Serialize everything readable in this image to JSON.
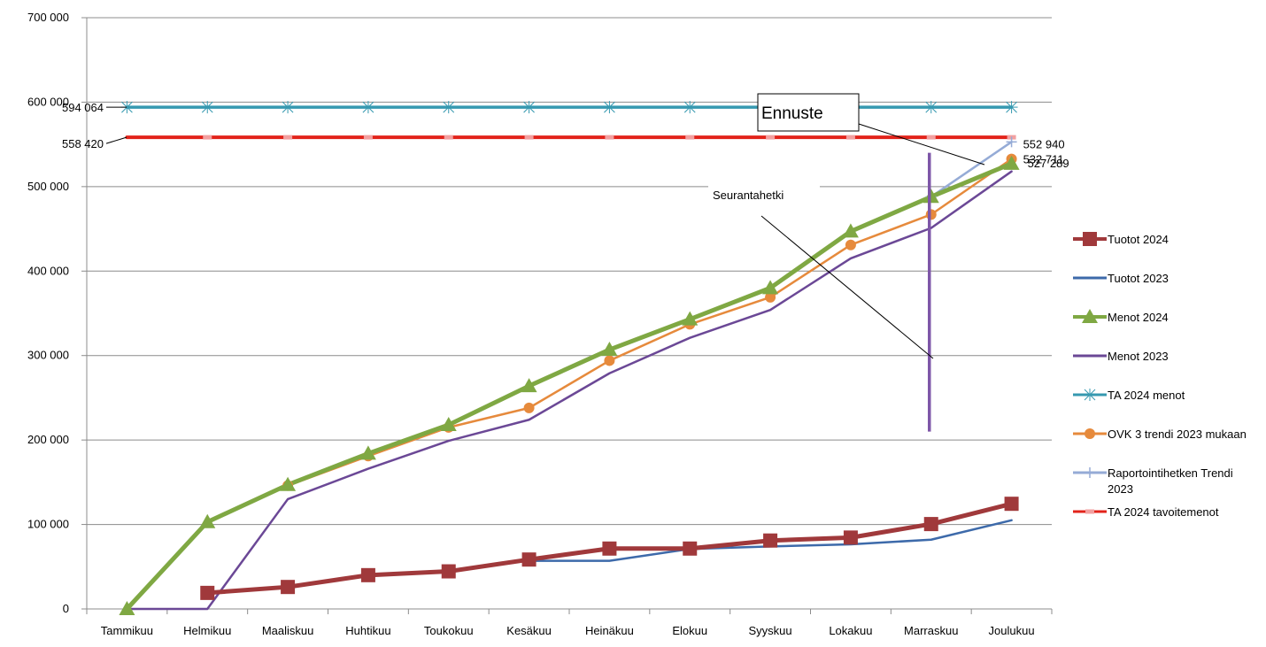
{
  "chart_data": {
    "type": "line",
    "ylim": [
      0,
      700000
    ],
    "yticks": [
      "0",
      "100 000",
      "200 000",
      "300 000",
      "400 000",
      "500 000",
      "600 000",
      "700 000"
    ],
    "categories": [
      "Tammikuu",
      "Helmikuu",
      "Maaliskuu",
      "Huhtikuu",
      "Toukokuu",
      "Kesäkuu",
      "Heinäkuu",
      "Elokuu",
      "Syyskuu",
      "Lokakuu",
      "Marraskuu",
      "Joulukuu"
    ],
    "grid": true,
    "legend_position": "right",
    "series": [
      {
        "name": "Tuotot 2024",
        "color": "#A0393B",
        "marker": "square",
        "width": 5,
        "values": [
          null,
          19000,
          26000,
          40000,
          44500,
          58500,
          71500,
          71500,
          81000,
          84500,
          100500,
          124500
        ]
      },
      {
        "name": "Tuotot 2023",
        "color": "#3D6AAA",
        "marker": "none",
        "width": 2.5,
        "values": [
          null,
          null,
          null,
          null,
          null,
          57000,
          57000,
          71000,
          74000,
          76500,
          82000,
          105000
        ]
      },
      {
        "name": "Menot 2024",
        "color": "#7FA843",
        "marker": "triangle",
        "width": 5,
        "values": [
          0,
          103000,
          147000,
          184000,
          218000,
          264000,
          307000,
          343000,
          380000,
          447000,
          488000,
          527289
        ]
      },
      {
        "name": "Menot 2023",
        "color": "#6B4896",
        "marker": "none",
        "width": 2.5,
        "values": [
          0,
          0,
          130000,
          166000,
          199000,
          224000,
          279000,
          321000,
          354000,
          415000,
          451000,
          518000
        ]
      },
      {
        "name": "TA 2024 menot",
        "color": "#3699B0",
        "marker": "star",
        "width": 3.5,
        "values": [
          594064,
          594064,
          594064,
          594064,
          594064,
          594064,
          594064,
          594064,
          594064,
          594064,
          594064,
          594064
        ]
      },
      {
        "name": "OVK 3 trendi 2023 mukaan",
        "color": "#E68A3C",
        "marker": "circle",
        "width": 2.5,
        "values": [
          null,
          null,
          146000,
          181000,
          215000,
          238000,
          294000,
          337000,
          369000,
          431000,
          467000,
          532711
        ]
      },
      {
        "name": "Raportointihetken Trendi 2023",
        "color": "#95ABD6",
        "marker": "plus",
        "width": 2.5,
        "values": [
          null,
          null,
          null,
          null,
          null,
          null,
          null,
          null,
          null,
          null,
          488000,
          552940
        ]
      },
      {
        "name": "TA 2024 tavoitemenot",
        "color": "#E2231A",
        "marker": "dash",
        "width": 4,
        "values": [
          558420,
          558420,
          558420,
          558420,
          558420,
          558420,
          558420,
          558420,
          558420,
          558420,
          558420,
          558420
        ]
      }
    ],
    "legend": [
      {
        "name": "Tuotot 2024",
        "color": "#A0393B",
        "marker": "square"
      },
      {
        "name": "Tuotot 2023",
        "color": "#3D6AAA",
        "marker": "none"
      },
      {
        "name": "Menot 2024",
        "color": "#7FA843",
        "marker": "triangle"
      },
      {
        "name": "Menot 2023",
        "color": "#6B4896",
        "marker": "none"
      },
      {
        "name": "TA 2024 menot",
        "color": "#3699B0",
        "marker": "star"
      },
      {
        "name": "OVK 3 trendi 2023 mukaan",
        "color": "#E68A3C",
        "marker": "circle"
      },
      {
        "name": "Raportointihetken Trendi 2023",
        "color": "#95ABD6",
        "marker": "plus"
      },
      {
        "name": "TA 2024 tavoitemenot",
        "color": "#E2231A",
        "marker": "dash"
      }
    ],
    "annotations": {
      "ta_menot_label": "594 064",
      "tavoite_label": "558 420",
      "end_labels": [
        "552 940",
        "532 711",
        "527 289"
      ],
      "ennuste": "Ennuste",
      "seurantahetki": "Seurantahetki"
    },
    "marker_line": {
      "color": "#7E56A8",
      "category_index": 10,
      "from": 210000,
      "to": 540000
    }
  }
}
